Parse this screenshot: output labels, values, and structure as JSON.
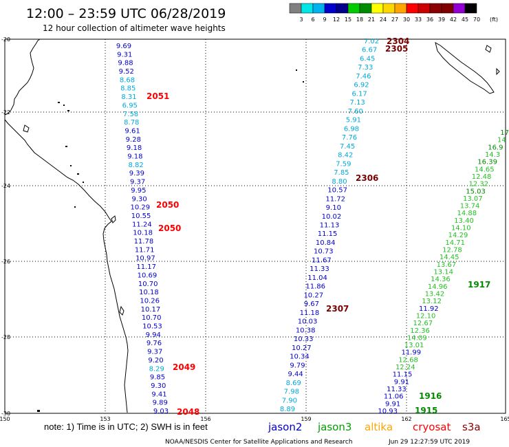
{
  "header": {
    "title": "12:00 – 23:59 UTC 06/28/2019",
    "subtitle": "12 hour collection of altimeter wave heights"
  },
  "colorbar": {
    "unit": "(ft)",
    "colors": [
      "#808080",
      "#00e5e5",
      "#00b2ee",
      "#0000cd",
      "#00008b",
      "#00cd00",
      "#008b00",
      "#ffff00",
      "#ffd700",
      "#ffa500",
      "#ff0000",
      "#cd0000",
      "#8b0000",
      "#800000",
      "#9400d3",
      "#000000"
    ],
    "labels": [
      "3",
      "6",
      "9",
      "12",
      "15",
      "18",
      "21",
      "24",
      "27",
      "30",
      "33",
      "36",
      "39",
      "42",
      "45",
      "70"
    ]
  },
  "axes": {
    "lon": [
      "150",
      "153",
      "156",
      "159",
      "162",
      "165"
    ],
    "lat": [
      "-20",
      "-22",
      "-24",
      "-26",
      "-28",
      "-30"
    ]
  },
  "passes": [
    {
      "id": "t2304",
      "text": "2304",
      "color": "#7a0000"
    },
    {
      "id": "t2305",
      "text": "2305",
      "color": "#7a0000"
    },
    {
      "id": "t2051",
      "text": "2051",
      "color": "#ff0000"
    },
    {
      "id": "t2306",
      "text": "2306",
      "color": "#7a0000"
    },
    {
      "id": "t2050a",
      "text": "2050",
      "color": "#ff0000"
    },
    {
      "id": "t2050b",
      "text": "2050",
      "color": "#ff0000"
    },
    {
      "id": "t1917",
      "text": "1917",
      "color": "#008b00"
    },
    {
      "id": "t2307",
      "text": "2307",
      "color": "#7a0000"
    },
    {
      "id": "t2049",
      "text": "2049",
      "color": "#ff0000"
    },
    {
      "id": "t1916",
      "text": "1916",
      "color": "#008b00"
    },
    {
      "id": "t2048",
      "text": "2048",
      "color": "#ff0000"
    },
    {
      "id": "t1915",
      "text": "1915",
      "color": "#008b00"
    }
  ],
  "tracks": {
    "track_a": [
      "9.69",
      "9.31",
      "9.88",
      "9.52",
      "8.68",
      "8.85",
      "8.31",
      "6.95",
      "7.58",
      "8.78",
      "9.61",
      "9.28",
      "9.18",
      "9.18",
      "8.82",
      "9.39",
      "9.37",
      "9.95",
      "9.30",
      "10.29",
      "10.55",
      "11.24",
      "10.18",
      "11.78",
      "11.71",
      "10.97",
      "11.17",
      "10.69",
      "10.70",
      "10.18",
      "10.26",
      "10.17",
      "10.70",
      "10.53",
      "9.94",
      "9.76",
      "9.37",
      "9.20",
      "8.29",
      "9.85",
      "9.30",
      "9.41",
      "9.89",
      "9.03"
    ],
    "track_b": [
      "7.02",
      "6.67",
      "6.45",
      "7.33",
      "7.46",
      "6.92",
      "6.17",
      "7.13",
      "7.60",
      "5.91",
      "6.98",
      "7.76",
      "7.45",
      "8.42",
      "7.59",
      "7.85",
      "8.80",
      "10.57",
      "11.72",
      "9.10",
      "10.02",
      "11.13",
      "11.15",
      "10.84",
      "10.73",
      "11.67",
      "11.33",
      "11.04",
      "11.86",
      "10.27",
      "9.67",
      "11.18",
      "10.03",
      "10.38",
      "10.33",
      "10.27",
      "10.34",
      "9.79",
      "9.44",
      "8.69",
      "7.98",
      "7.90",
      "8.89"
    ],
    "track_c": [
      "17",
      "14",
      "16.9",
      "14.3",
      "16.39",
      "14.65",
      "12.48",
      "12.32",
      "15.03",
      "13.07",
      "13.74",
      "14.88",
      "13.40",
      "14.10",
      "14.29",
      "14.71",
      "12.78",
      "14.45",
      "13.67",
      "13.14",
      "14.36",
      "14.96",
      "13.42",
      "13.12",
      "11.92",
      "12.10",
      "12.67",
      "12.36",
      "14.09",
      "13.01",
      "11.99",
      "12.68",
      "12.24",
      "11.15",
      "9.91",
      "11.33",
      "11.06",
      "9.91",
      "10.93"
    ]
  },
  "footer": {
    "note": "note: 1) Time is in UTC; 2) SWH is in feet",
    "missions": [
      {
        "name": "jason2",
        "color": "#0000cd"
      },
      {
        "name": "jason3",
        "color": "#00a000"
      },
      {
        "name": "altika",
        "color": "#ffa500"
      },
      {
        "name": "cryosat",
        "color": "#ff0000"
      },
      {
        "name": "s3a",
        "color": "#8b0000"
      }
    ],
    "credit": "NOAA/NESDIS Center for Satellite Applications and Research",
    "timestamp": "Jun 29 12:27:59 UTC 2019"
  }
}
